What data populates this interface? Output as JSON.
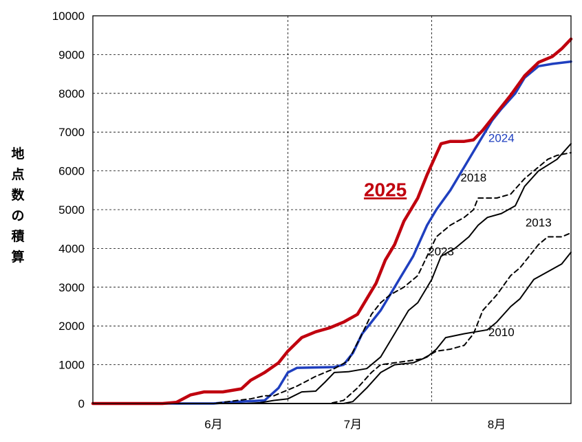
{
  "chart_data": {
    "type": "line",
    "ylabel": "地点数の積算",
    "ylim": [
      0,
      10000
    ],
    "yticks": [
      0,
      1000,
      2000,
      3000,
      4000,
      5000,
      6000,
      7000,
      8000,
      9000,
      10000
    ],
    "xlim": [
      "5/20",
      "8/31"
    ],
    "xtick_labels": [
      {
        "label": "6月",
        "date": "6/15"
      },
      {
        "label": "7月",
        "date": "7/15"
      },
      {
        "label": "8月",
        "date": "8/15"
      }
    ],
    "month_boundaries": [
      "7/1",
      "8/1"
    ],
    "grid": true,
    "series": [
      {
        "name": "2025",
        "color": "#c0000e",
        "style": "solid",
        "emphasis": true,
        "label_color": "#c0000e",
        "points": [
          [
            "5/20",
            0
          ],
          [
            "6/4",
            0
          ],
          [
            "6/7",
            30
          ],
          [
            "6/10",
            220
          ],
          [
            "6/13",
            300
          ],
          [
            "6/17",
            300
          ],
          [
            "6/21",
            380
          ],
          [
            "6/23",
            600
          ],
          [
            "6/26",
            800
          ],
          [
            "6/29",
            1050
          ],
          [
            "7/1",
            1350
          ],
          [
            "7/4",
            1700
          ],
          [
            "7/7",
            1850
          ],
          [
            "7/10",
            1950
          ],
          [
            "7/13",
            2100
          ],
          [
            "7/16",
            2300
          ],
          [
            "7/18",
            2700
          ],
          [
            "7/20",
            3100
          ],
          [
            "7/22",
            3700
          ],
          [
            "7/24",
            4100
          ],
          [
            "7/26",
            4700
          ],
          [
            "7/29",
            5300
          ],
          [
            "7/31",
            5900
          ],
          [
            "8/3",
            6700
          ],
          [
            "8/5",
            6760
          ],
          [
            "8/8",
            6760
          ],
          [
            "8/10",
            6800
          ],
          [
            "8/12",
            7050
          ],
          [
            "8/15",
            7500
          ],
          [
            "8/18",
            7950
          ],
          [
            "8/21",
            8450
          ],
          [
            "8/24",
            8800
          ],
          [
            "8/27",
            8950
          ],
          [
            "8/29",
            9150
          ],
          [
            "8/31",
            9400
          ]
        ]
      },
      {
        "name": "2024",
        "color": "#1f3fbf",
        "style": "solid",
        "emphasis": false,
        "label_color": "#1f3fbf",
        "points": [
          [
            "5/20",
            0
          ],
          [
            "6/15",
            0
          ],
          [
            "6/18",
            30
          ],
          [
            "6/26",
            80
          ],
          [
            "6/29",
            400
          ],
          [
            "7/1",
            800
          ],
          [
            "7/3",
            920
          ],
          [
            "7/11",
            940
          ],
          [
            "7/13",
            1000
          ],
          [
            "7/15",
            1300
          ],
          [
            "7/17",
            1800
          ],
          [
            "7/19",
            2100
          ],
          [
            "7/21",
            2400
          ],
          [
            "7/23",
            2800
          ],
          [
            "7/25",
            3200
          ],
          [
            "7/28",
            3800
          ],
          [
            "7/31",
            4600
          ],
          [
            "8/2",
            5000
          ],
          [
            "8/5",
            5500
          ],
          [
            "8/8",
            6100
          ],
          [
            "8/11",
            6700
          ],
          [
            "8/14",
            7300
          ],
          [
            "8/16",
            7600
          ],
          [
            "8/19",
            8000
          ],
          [
            "8/21",
            8400
          ],
          [
            "8/24",
            8700
          ],
          [
            "8/27",
            8760
          ],
          [
            "8/31",
            8820
          ]
        ]
      },
      {
        "name": "2018",
        "color": "#000000",
        "style": "dashed",
        "emphasis": false,
        "label_color": "#000000",
        "points": [
          [
            "5/20",
            0
          ],
          [
            "6/15",
            0
          ],
          [
            "6/19",
            60
          ],
          [
            "6/23",
            120
          ],
          [
            "6/26",
            200
          ],
          [
            "6/28",
            200
          ],
          [
            "7/1",
            350
          ],
          [
            "7/3",
            450
          ],
          [
            "7/7",
            700
          ],
          [
            "7/11",
            900
          ],
          [
            "7/14",
            1100
          ],
          [
            "7/17",
            1800
          ],
          [
            "7/19",
            2300
          ],
          [
            "7/21",
            2600
          ],
          [
            "7/23",
            2800
          ],
          [
            "7/26",
            3000
          ],
          [
            "7/29",
            3300
          ],
          [
            "7/31",
            3800
          ],
          [
            "8/2",
            4300
          ],
          [
            "8/5",
            4600
          ],
          [
            "8/8",
            4800
          ],
          [
            "8/10",
            5000
          ],
          [
            "8/11",
            5300
          ],
          [
            "8/15",
            5300
          ],
          [
            "8/18",
            5400
          ],
          [
            "8/21",
            5800
          ],
          [
            "8/23",
            6000
          ],
          [
            "8/26",
            6300
          ],
          [
            "8/28",
            6400
          ],
          [
            "8/31",
            6470
          ]
        ]
      },
      {
        "name": "2023",
        "color": "#000000",
        "style": "solid",
        "emphasis": false,
        "label_color": "#000000",
        "points": [
          [
            "5/20",
            0
          ],
          [
            "6/22",
            0
          ],
          [
            "6/25",
            20
          ],
          [
            "6/28",
            80
          ],
          [
            "7/1",
            120
          ],
          [
            "7/4",
            300
          ],
          [
            "7/7",
            320
          ],
          [
            "7/9",
            550
          ],
          [
            "7/11",
            800
          ],
          [
            "7/14",
            820
          ],
          [
            "7/18",
            900
          ],
          [
            "7/21",
            1200
          ],
          [
            "7/24",
            1800
          ],
          [
            "7/27",
            2400
          ],
          [
            "7/29",
            2600
          ],
          [
            "8/1",
            3200
          ],
          [
            "8/3",
            3800
          ],
          [
            "8/6",
            4000
          ],
          [
            "8/9",
            4300
          ],
          [
            "8/11",
            4600
          ],
          [
            "8/13",
            4800
          ],
          [
            "8/16",
            4900
          ],
          [
            "8/19",
            5100
          ],
          [
            "8/21",
            5600
          ],
          [
            "8/24",
            6000
          ],
          [
            "8/28",
            6300
          ],
          [
            "8/31",
            6700
          ]
        ]
      },
      {
        "name": "2013",
        "color": "#000000",
        "style": "dashed",
        "emphasis": false,
        "label_color": "#000000",
        "points": [
          [
            "5/20",
            0
          ],
          [
            "7/10",
            0
          ],
          [
            "7/13",
            80
          ],
          [
            "7/16",
            400
          ],
          [
            "7/19",
            800
          ],
          [
            "7/21",
            1000
          ],
          [
            "7/24",
            1050
          ],
          [
            "7/27",
            1100
          ],
          [
            "7/30",
            1150
          ],
          [
            "8/2",
            1350
          ],
          [
            "8/5",
            1400
          ],
          [
            "8/8",
            1500
          ],
          [
            "8/10",
            1800
          ],
          [
            "8/12",
            2400
          ],
          [
            "8/15",
            2800
          ],
          [
            "8/18",
            3300
          ],
          [
            "8/20",
            3500
          ],
          [
            "8/22",
            3800
          ],
          [
            "8/24",
            4100
          ],
          [
            "8/26",
            4300
          ],
          [
            "8/29",
            4300
          ],
          [
            "8/31",
            4400
          ]
        ]
      },
      {
        "name": "2010",
        "color": "#000000",
        "style": "solid",
        "emphasis": false,
        "label_color": "#000000",
        "points": [
          [
            "5/20",
            0
          ],
          [
            "7/13",
            0
          ],
          [
            "7/15",
            50
          ],
          [
            "7/18",
            400
          ],
          [
            "7/21",
            800
          ],
          [
            "7/24",
            1000
          ],
          [
            "7/28",
            1050
          ],
          [
            "7/31",
            1200
          ],
          [
            "8/2",
            1400
          ],
          [
            "8/4",
            1700
          ],
          [
            "8/8",
            1800
          ],
          [
            "8/13",
            1900
          ],
          [
            "8/15",
            2100
          ],
          [
            "8/18",
            2500
          ],
          [
            "8/20",
            2700
          ],
          [
            "8/23",
            3200
          ],
          [
            "8/26",
            3400
          ],
          [
            "8/29",
            3600
          ],
          [
            "8/31",
            3900
          ]
        ]
      }
    ],
    "series_labels": [
      {
        "name": "2025",
        "at": [
          "7/22",
          5350
        ]
      },
      {
        "name": "2024",
        "at": [
          "8/16",
          6750
        ]
      },
      {
        "name": "2018",
        "at": [
          "8/10",
          5730
        ]
      },
      {
        "name": "2023",
        "at": [
          "8/3",
          3820
        ]
      },
      {
        "name": "2013",
        "at": [
          "8/24",
          4570
        ]
      },
      {
        "name": "2010",
        "at": [
          "8/16",
          1740
        ]
      }
    ]
  }
}
